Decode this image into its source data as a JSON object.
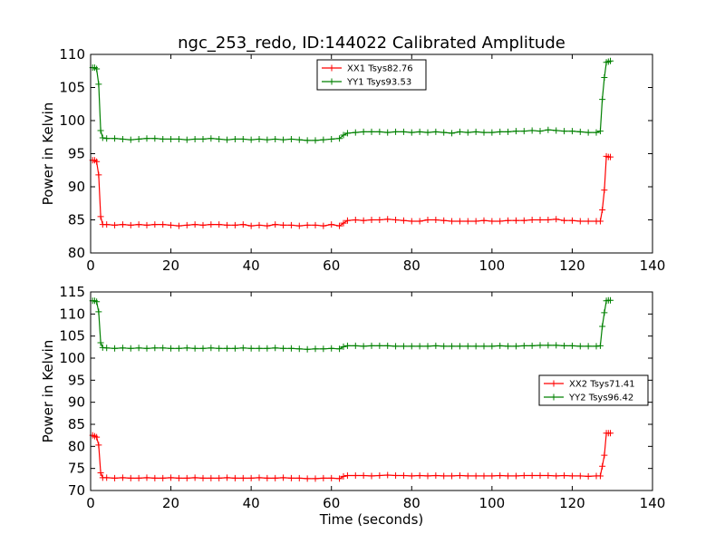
{
  "chart_data": [
    {
      "type": "line",
      "title": "ngc_253_redo, ID:144022 Calibrated Amplitude",
      "xlabel": "",
      "ylabel": "Power in Kelvin",
      "xlim": [
        0,
        140
      ],
      "ylim": [
        80,
        110
      ],
      "xticks": [
        0,
        20,
        40,
        60,
        80,
        100,
        120,
        140
      ],
      "yticks": [
        80,
        85,
        90,
        95,
        100,
        105,
        110
      ],
      "legend": "top-center",
      "grid": false,
      "series": [
        {
          "name": "XX1 Tsys82.76",
          "color": "#ff0000",
          "marker": "+",
          "x": [
            0.5,
            1,
            1.5,
            2,
            2.5,
            3,
            4,
            6,
            8,
            10,
            12,
            14,
            16,
            18,
            20,
            22,
            24,
            26,
            28,
            30,
            32,
            34,
            36,
            38,
            40,
            42,
            44,
            46,
            48,
            50,
            52,
            54,
            56,
            58,
            60,
            62,
            63,
            64,
            66,
            68,
            70,
            72,
            74,
            76,
            78,
            80,
            82,
            84,
            86,
            88,
            90,
            92,
            94,
            96,
            98,
            100,
            102,
            104,
            106,
            108,
            110,
            112,
            114,
            116,
            118,
            120,
            122,
            124,
            126,
            127,
            127.5,
            128,
            128.5,
            129,
            129.5
          ],
          "y": [
            94,
            94,
            93.8,
            91.8,
            85.5,
            84.3,
            84.3,
            84.2,
            84.3,
            84.2,
            84.3,
            84.2,
            84.3,
            84.3,
            84.2,
            84.1,
            84.2,
            84.3,
            84.2,
            84.3,
            84.3,
            84.2,
            84.2,
            84.3,
            84.1,
            84.2,
            84.1,
            84.3,
            84.2,
            84.2,
            84.1,
            84.2,
            84.2,
            84.1,
            84.3,
            84.1,
            84.5,
            84.9,
            85,
            84.9,
            85,
            85,
            85.1,
            85,
            84.9,
            84.8,
            84.8,
            85,
            85,
            84.9,
            84.8,
            84.8,
            84.8,
            84.8,
            84.9,
            84.8,
            84.8,
            84.9,
            84.9,
            84.9,
            85,
            85,
            85,
            85.1,
            84.9,
            84.9,
            84.8,
            84.8,
            84.8,
            84.8,
            86.5,
            89.5,
            94.6,
            94.5,
            94.5
          ]
        },
        {
          "name": "YY1 Tsys93.53",
          "color": "#008000",
          "marker": "+",
          "x": [
            0.5,
            1,
            1.5,
            2,
            2.5,
            3,
            4,
            6,
            8,
            10,
            12,
            14,
            16,
            18,
            20,
            22,
            24,
            26,
            28,
            30,
            32,
            34,
            36,
            38,
            40,
            42,
            44,
            46,
            48,
            50,
            52,
            54,
            56,
            58,
            60,
            62,
            63,
            64,
            66,
            68,
            70,
            72,
            74,
            76,
            78,
            80,
            82,
            84,
            86,
            88,
            90,
            92,
            94,
            96,
            98,
            100,
            102,
            104,
            106,
            108,
            110,
            112,
            114,
            116,
            118,
            120,
            122,
            124,
            126,
            127,
            127.5,
            128,
            128.5,
            129,
            129.5
          ],
          "y": [
            108,
            108,
            107.8,
            105.5,
            98.5,
            97.4,
            97.3,
            97.3,
            97.2,
            97.1,
            97.2,
            97.3,
            97.3,
            97.2,
            97.2,
            97.2,
            97.1,
            97.2,
            97.2,
            97.3,
            97.2,
            97.1,
            97.2,
            97.2,
            97.1,
            97.2,
            97.1,
            97.2,
            97.1,
            97.2,
            97.1,
            97,
            97,
            97.1,
            97.2,
            97.3,
            97.8,
            98.1,
            98.2,
            98.3,
            98.3,
            98.3,
            98.2,
            98.3,
            98.3,
            98.2,
            98.3,
            98.2,
            98.3,
            98.2,
            98.1,
            98.3,
            98.2,
            98.3,
            98.2,
            98.2,
            98.3,
            98.3,
            98.4,
            98.4,
            98.5,
            98.4,
            98.6,
            98.5,
            98.4,
            98.4,
            98.3,
            98.2,
            98.2,
            98.4,
            103.2,
            106.5,
            108.8,
            108.9,
            109
          ]
        }
      ]
    },
    {
      "type": "line",
      "title": "",
      "xlabel": "Time (seconds)",
      "ylabel": "Power in Kelvin",
      "xlim": [
        0,
        140
      ],
      "ylim": [
        70,
        115
      ],
      "xticks": [
        0,
        20,
        40,
        60,
        80,
        100,
        120,
        140
      ],
      "yticks": [
        70,
        75,
        80,
        85,
        90,
        95,
        100,
        105,
        110,
        115
      ],
      "legend": "center-right",
      "grid": false,
      "series": [
        {
          "name": "XX2 Tsys71.41",
          "color": "#ff0000",
          "marker": "+",
          "x": [
            0.5,
            1,
            1.5,
            2,
            2.5,
            3,
            4,
            6,
            8,
            10,
            12,
            14,
            16,
            18,
            20,
            22,
            24,
            26,
            28,
            30,
            32,
            34,
            36,
            38,
            40,
            42,
            44,
            46,
            48,
            50,
            52,
            54,
            56,
            58,
            60,
            62,
            63,
            64,
            66,
            68,
            70,
            72,
            74,
            76,
            78,
            80,
            82,
            84,
            86,
            88,
            90,
            92,
            94,
            96,
            98,
            100,
            102,
            104,
            106,
            108,
            110,
            112,
            114,
            116,
            118,
            120,
            122,
            124,
            126,
            127,
            127.5,
            128,
            128.5,
            129,
            129.5
          ],
          "y": [
            82.5,
            82.3,
            82.1,
            80.3,
            74,
            72.9,
            72.9,
            72.8,
            72.9,
            72.8,
            72.8,
            72.9,
            72.8,
            72.8,
            72.9,
            72.8,
            72.8,
            72.9,
            72.8,
            72.8,
            72.8,
            72.9,
            72.8,
            72.8,
            72.8,
            72.9,
            72.8,
            72.8,
            72.9,
            72.8,
            72.8,
            72.7,
            72.7,
            72.8,
            72.8,
            72.7,
            73.2,
            73.4,
            73.4,
            73.4,
            73.3,
            73.4,
            73.5,
            73.4,
            73.4,
            73.3,
            73.4,
            73.3,
            73.4,
            73.3,
            73.3,
            73.4,
            73.3,
            73.3,
            73.3,
            73.3,
            73.4,
            73.3,
            73.3,
            73.4,
            73.4,
            73.4,
            73.4,
            73.3,
            73.4,
            73.3,
            73.3,
            73.2,
            73.3,
            73.3,
            75.5,
            78,
            83,
            83,
            83
          ]
        },
        {
          "name": "YY2 Tsys96.42",
          "color": "#008000",
          "marker": "+",
          "x": [
            0.5,
            1,
            1.5,
            2,
            2.5,
            3,
            4,
            6,
            8,
            10,
            12,
            14,
            16,
            18,
            20,
            22,
            24,
            26,
            28,
            30,
            32,
            34,
            36,
            38,
            40,
            42,
            44,
            46,
            48,
            50,
            52,
            54,
            56,
            58,
            60,
            62,
            63,
            64,
            66,
            68,
            70,
            72,
            74,
            76,
            78,
            80,
            82,
            84,
            86,
            88,
            90,
            92,
            94,
            96,
            98,
            100,
            102,
            104,
            106,
            108,
            110,
            112,
            114,
            116,
            118,
            120,
            122,
            124,
            126,
            127,
            127.5,
            128,
            128.5,
            129,
            129.5
          ],
          "y": [
            113,
            113,
            112.8,
            110.5,
            103.5,
            102.4,
            102.3,
            102.2,
            102.3,
            102.2,
            102.3,
            102.2,
            102.3,
            102.3,
            102.2,
            102.2,
            102.3,
            102.2,
            102.2,
            102.3,
            102.2,
            102.2,
            102.2,
            102.3,
            102.2,
            102.2,
            102.2,
            102.3,
            102.2,
            102.2,
            102.1,
            102,
            102.1,
            102.1,
            102.2,
            102.1,
            102.6,
            102.8,
            102.8,
            102.7,
            102.8,
            102.8,
            102.8,
            102.7,
            102.7,
            102.7,
            102.7,
            102.7,
            102.8,
            102.7,
            102.7,
            102.7,
            102.7,
            102.7,
            102.7,
            102.7,
            102.8,
            102.7,
            102.7,
            102.8,
            102.8,
            102.9,
            102.9,
            102.9,
            102.8,
            102.8,
            102.7,
            102.7,
            102.7,
            102.8,
            107.2,
            110.3,
            113,
            113.1,
            113.1
          ]
        }
      ]
    }
  ]
}
